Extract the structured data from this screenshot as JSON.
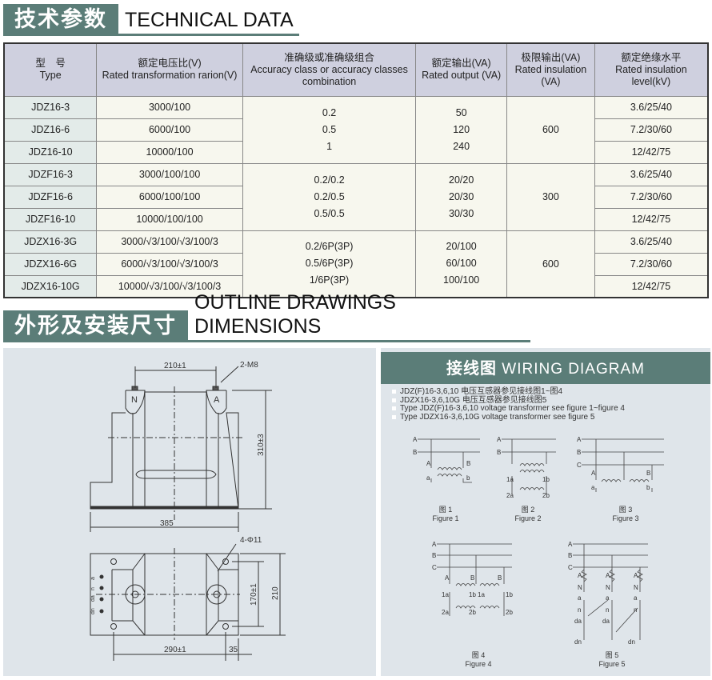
{
  "section1": {
    "cn": "技术参数",
    "en": "TECHNICAL DATA"
  },
  "table": {
    "headers": [
      {
        "cn": "型　号",
        "en": "Type"
      },
      {
        "cn": "额定电压比(V)",
        "en": "Rated transformation rarion(V)"
      },
      {
        "cn": "准确级或准确级组合",
        "en": "Accuracy class or accuracy classes combination"
      },
      {
        "cn": "额定输出(VA)",
        "en": "Rated output (VA)"
      },
      {
        "cn": "极限输出(VA)",
        "en": "Rated insulation (VA)"
      },
      {
        "cn": "额定绝缘水平",
        "en": "Rated insulation level(kV)"
      }
    ],
    "groups": [
      {
        "accuracy": [
          "0.2",
          "0.5",
          "1"
        ],
        "output": [
          "50",
          "120",
          "240"
        ],
        "limit": "600",
        "rows": [
          [
            "JDZ16-3",
            "3000/100",
            "3.6/25/40"
          ],
          [
            "JDZ16-6",
            "6000/100",
            "7.2/30/60"
          ],
          [
            "JDZ16-10",
            "10000/100",
            "12/42/75"
          ]
        ]
      },
      {
        "accuracy": [
          "0.2/0.2",
          "0.2/0.5",
          "0.5/0.5"
        ],
        "output": [
          "20/20",
          "20/30",
          "30/30"
        ],
        "limit": "300",
        "rows": [
          [
            "JDZF16-3",
            "3000/100/100",
            "3.6/25/40"
          ],
          [
            "JDZF16-6",
            "6000/100/100",
            "7.2/30/60"
          ],
          [
            "JDZF16-10",
            "10000/100/100",
            "12/42/75"
          ]
        ]
      },
      {
        "accuracy": [
          "0.2/6P(3P)",
          "0.5/6P(3P)",
          "1/6P(3P)"
        ],
        "output": [
          "20/100",
          "60/100",
          "100/100"
        ],
        "limit": "600",
        "rows": [
          [
            "JDZX16-3G",
            "3000/√3/100/√3/100/3",
            "3.6/25/40"
          ],
          [
            "JDZX16-6G",
            "6000/√3/100/√3/100/3",
            "7.2/30/60"
          ],
          [
            "JDZX16-10G",
            "10000/√3/100/√3/100/3",
            "12/42/75"
          ]
        ]
      }
    ]
  },
  "section2": {
    "cn": "外形及安装尺寸",
    "en": "OUTLINE  DRAWINGS  DIMENSIONS"
  },
  "drawing": {
    "dim_top": "210±1",
    "bolt": "2-M8",
    "term_n": "N",
    "term_a": "A",
    "height": "310±3",
    "width": "385",
    "holes": "4-Φ11",
    "dim_170": "170±1",
    "dim_210": "210",
    "dim_290": "290±1",
    "dim_35": "35",
    "terminals": [
      "a",
      "n",
      "da",
      "dn"
    ]
  },
  "wiring": {
    "title_cn": "接线图",
    "title_en": "WIRING  DIAGRAM",
    "notes": [
      "JDZ(F)16-3,6,10 电压互感器参见接线图1~图4",
      "JDZX16-3,6,10G 电压互感器参见接线图5",
      "Type JDZ(F)16-3,6,10  voltage transformer see figure 1~figure 4",
      "Type JDZX16-3,6,10G  voltage transformer see figure 5"
    ],
    "figures": [
      {
        "cn": "图 1",
        "en": "Figure 1"
      },
      {
        "cn": "图 2",
        "en": "Figure 2"
      },
      {
        "cn": "图 3",
        "en": "Figure 3"
      },
      {
        "cn": "图 4",
        "en": "Figure 4"
      },
      {
        "cn": "图 5",
        "en": "Figure 5"
      }
    ],
    "labels": {
      "A": "A",
      "B": "B",
      "C": "C",
      "a": "a",
      "b": "b",
      "1a": "1a",
      "1b": "1b",
      "2a": "2a",
      "2b": "2b",
      "N": "N",
      "n": "n",
      "da": "da",
      "dn": "dn"
    }
  }
}
